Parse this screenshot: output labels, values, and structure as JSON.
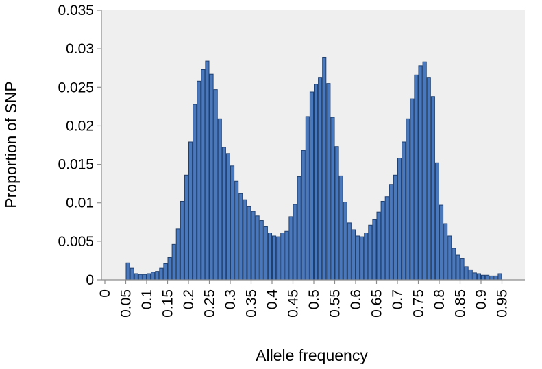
{
  "chart_data": {
    "type": "bar",
    "xlabel": "Allele frequency",
    "ylabel": "Proportion of SNP",
    "ylim": [
      0,
      0.035
    ],
    "yticks": [
      "0",
      "0.005",
      "0.01",
      "0.015",
      "0.02",
      "0.025",
      "0.03",
      "0.035"
    ],
    "xlim": [
      0,
      1
    ],
    "xticks": [
      "0",
      "0.05",
      "0.1",
      "0.15",
      "0.2",
      "0.25",
      "0.3",
      "0.35",
      "0.4",
      "0.45",
      "0.5",
      "0.55",
      "0.6",
      "0.65",
      "0.7",
      "0.75",
      "0.8",
      "0.85",
      "0.9",
      "0.95"
    ],
    "bin_width": 0.01,
    "bin_start": [
      0.05,
      0.06,
      0.07,
      0.08,
      0.09,
      0.1,
      0.11,
      0.12,
      0.13,
      0.14,
      0.15,
      0.16,
      0.17,
      0.18,
      0.19,
      0.2,
      0.21,
      0.22,
      0.23,
      0.24,
      0.25,
      0.26,
      0.27,
      0.28,
      0.29,
      0.3,
      0.31,
      0.32,
      0.33,
      0.34,
      0.35,
      0.36,
      0.37,
      0.38,
      0.39,
      0.4,
      0.41,
      0.42,
      0.43,
      0.44,
      0.45,
      0.46,
      0.47,
      0.48,
      0.49,
      0.5,
      0.51,
      0.52,
      0.53,
      0.54,
      0.55,
      0.56,
      0.57,
      0.58,
      0.59,
      0.6,
      0.61,
      0.62,
      0.63,
      0.64,
      0.65,
      0.66,
      0.67,
      0.68,
      0.69,
      0.7,
      0.71,
      0.72,
      0.73,
      0.74,
      0.75,
      0.76,
      0.77,
      0.78,
      0.79,
      0.8,
      0.81,
      0.82,
      0.83,
      0.84,
      0.85,
      0.86,
      0.87,
      0.88,
      0.89,
      0.9,
      0.91,
      0.92,
      0.93,
      0.94
    ],
    "values": [
      0.0022,
      0.0015,
      0.0008,
      0.0007,
      0.0007,
      0.0008,
      0.001,
      0.0011,
      0.0015,
      0.0021,
      0.0029,
      0.0046,
      0.0066,
      0.0102,
      0.0136,
      0.0179,
      0.0228,
      0.0258,
      0.0273,
      0.0284,
      0.0267,
      0.0247,
      0.0209,
      0.0172,
      0.0164,
      0.0148,
      0.0128,
      0.0112,
      0.0104,
      0.0095,
      0.0089,
      0.0083,
      0.0077,
      0.0069,
      0.0061,
      0.0057,
      0.0056,
      0.0061,
      0.0063,
      0.0082,
      0.0098,
      0.0134,
      0.0168,
      0.0212,
      0.0244,
      0.0254,
      0.0263,
      0.0289,
      0.0255,
      0.0211,
      0.0173,
      0.0135,
      0.0101,
      0.0074,
      0.0065,
      0.0057,
      0.0056,
      0.0061,
      0.0071,
      0.0078,
      0.0088,
      0.0102,
      0.0108,
      0.0124,
      0.0136,
      0.0158,
      0.0179,
      0.0209,
      0.0235,
      0.0266,
      0.0278,
      0.0283,
      0.0263,
      0.0238,
      0.0152,
      0.0097,
      0.0073,
      0.0057,
      0.0041,
      0.0032,
      0.0028,
      0.0017,
      0.0013,
      0.0009,
      0.0008,
      0.0006,
      0.0006,
      0.0005,
      0.0005,
      0.0008
    ],
    "colors": {
      "bar_fill": "#4a78bd",
      "bar_stroke": "#1f3f6e",
      "plot_bg": "#efefef",
      "axis": "#8c8c8c"
    },
    "grid": false,
    "legend": "none"
  }
}
